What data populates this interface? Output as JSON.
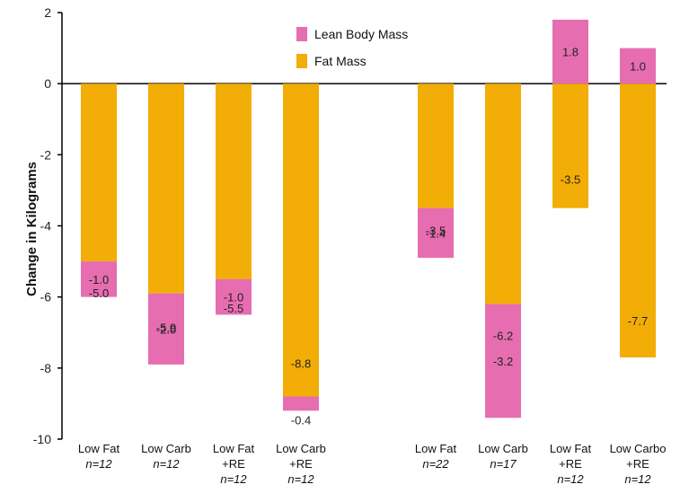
{
  "chart_data": {
    "type": "bar",
    "stacked": true,
    "ylabel": "Change in Kilograms",
    "ylim": [
      -10,
      2
    ],
    "yticks": [
      2,
      0,
      -2,
      -4,
      -6,
      -8,
      -10
    ],
    "legend_position": "top-center",
    "colors": {
      "lean": "#e76db1",
      "fat": "#f2ad06"
    },
    "categories": [
      {
        "lines": [
          "Low Fat"
        ],
        "n": "n=12"
      },
      {
        "lines": [
          "Low Carb"
        ],
        "n": "n=12"
      },
      {
        "lines": [
          "Low Fat",
          "+RE"
        ],
        "n": "n=12"
      },
      {
        "lines": [
          "Low Carb",
          "+RE"
        ],
        "n": "n=12"
      },
      {
        "lines": [
          "Low Fat"
        ],
        "n": "n=22"
      },
      {
        "lines": [
          "Low Carb"
        ],
        "n": "n=17"
      },
      {
        "lines": [
          "Low Fat",
          "+RE"
        ],
        "n": "n=12"
      },
      {
        "lines": [
          "Low Carbo",
          "+RE"
        ],
        "n": "n=12"
      }
    ],
    "series": [
      {
        "name": "Lean Body Mass",
        "key": "lean",
        "values": [
          -1.0,
          -2.0,
          -1.0,
          -0.4,
          -1.4,
          -3.2,
          1.8,
          1.0
        ],
        "labels": [
          "-1.0",
          "-2.0",
          "-1.0",
          "-0.4",
          "-1.4",
          "-3.2",
          "1.8",
          "1.0"
        ]
      },
      {
        "name": "Fat Mass",
        "key": "fat",
        "values": [
          -5.0,
          -5.9,
          -5.5,
          -8.8,
          -3.5,
          -6.2,
          -3.5,
          -7.7
        ],
        "labels": [
          "-5.0",
          "-5.9",
          "-5.5",
          "-8.8",
          "-3.5",
          "-6.2",
          "-3.5",
          "-7.7"
        ]
      }
    ]
  }
}
